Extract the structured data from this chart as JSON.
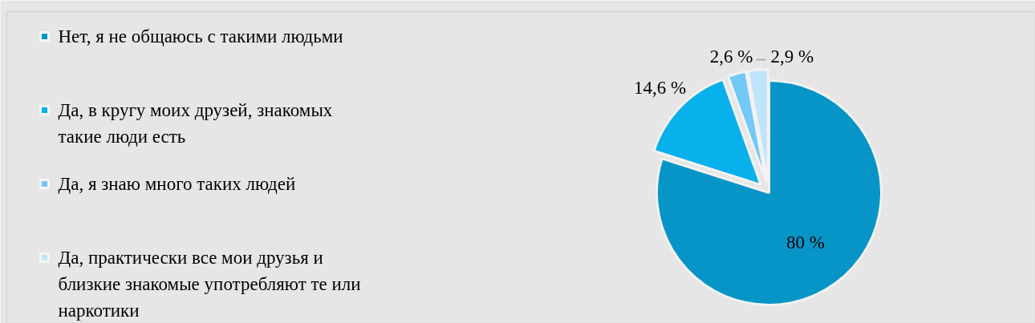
{
  "chart_data": {
    "type": "pie",
    "categories": [
      "Нет, я не общаюсь с такими людьми",
      "Да, в кругу моих друзей, знакомых такие люди есть",
      "Да, я знаю много таких людей",
      "Да, практически все мои друзья и близкие знакомые употребляют те или наркотики"
    ],
    "values": [
      80,
      14.6,
      2.6,
      2.9
    ],
    "colors": [
      "#0795c8",
      "#08b0ec",
      "#72c8f6",
      "#bfe5fb"
    ],
    "value_labels": [
      "80 %",
      "14,6 %",
      "2,6 %",
      "2,9 %"
    ],
    "legend": "left"
  }
}
